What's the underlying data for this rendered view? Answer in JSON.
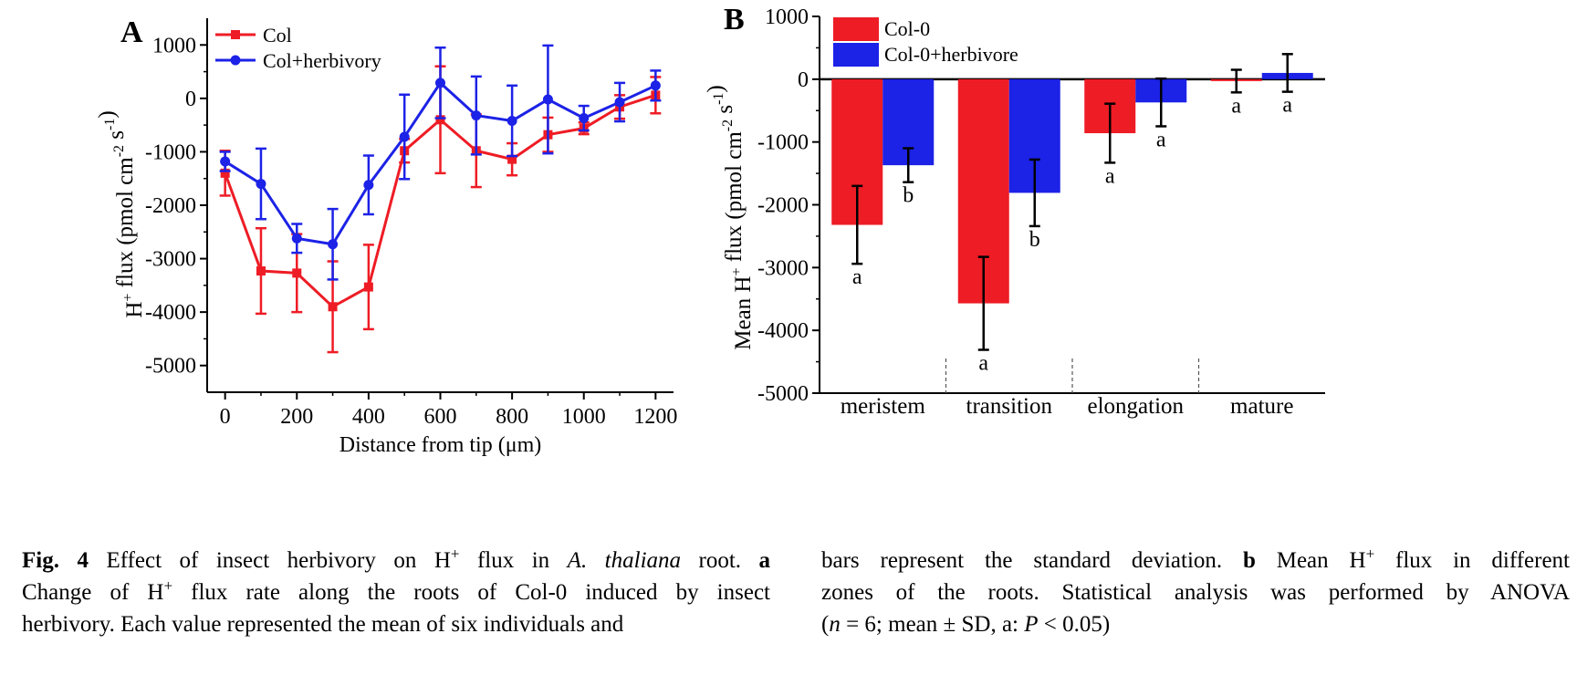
{
  "chart_data": [
    {
      "type": "line",
      "panel_label": "A",
      "xlabel": "Distance from tip (μm)",
      "ylabel": "H+ flux (pmol cm-2 s-1)",
      "xlim": [
        -50,
        1250
      ],
      "ylim": [
        -5500,
        1500
      ],
      "x_ticks": [
        0,
        200,
        400,
        600,
        800,
        1000,
        1200
      ],
      "y_ticks": [
        1000,
        0,
        -1000,
        -2000,
        -3000,
        -4000,
        -5000
      ],
      "legend_position": "top-left",
      "x": [
        0,
        100,
        200,
        300,
        400,
        500,
        600,
        700,
        800,
        900,
        1000,
        1100,
        1200
      ],
      "series": [
        {
          "name": "Col",
          "color": "#ee1c25",
          "marker": "square",
          "values": [
            -1400,
            -3230,
            -3270,
            -3900,
            -3530,
            -980,
            -400,
            -980,
            -1140,
            -680,
            -560,
            -160,
            60
          ],
          "errors": [
            420,
            800,
            730,
            850,
            790,
            220,
            1000,
            680,
            300,
            320,
            110,
            220,
            340
          ]
        },
        {
          "name": "Col+herbivory",
          "color": "#1c22e6",
          "marker": "circle",
          "values": [
            -1180,
            -1600,
            -2620,
            -2730,
            -1620,
            -720,
            290,
            -320,
            -420,
            -20,
            -370,
            -70,
            240
          ],
          "errors": [
            180,
            660,
            270,
            660,
            550,
            790,
            660,
            730,
            660,
            1010,
            230,
            360,
            280
          ]
        }
      ]
    },
    {
      "type": "bar",
      "panel_label": "B",
      "ylabel": "Mean H+ flux (pmol cm-2 s-1)",
      "categories": [
        "meristem",
        "transition",
        "elongation",
        "mature"
      ],
      "ylim": [
        -5000,
        1000
      ],
      "y_ticks": [
        1000,
        0,
        -1000,
        -2000,
        -3000,
        -4000,
        -5000
      ],
      "legend_position": "top-left",
      "series": [
        {
          "name": "Col-0",
          "color": "#ee1c25",
          "values": [
            -2320,
            -3570,
            -860,
            -30
          ],
          "errors": [
            620,
            740,
            470,
            180
          ],
          "letters": [
            "a",
            "a",
            "a",
            "a"
          ]
        },
        {
          "name": "Col-0+herbivore",
          "color": "#1c22e6",
          "values": [
            -1370,
            -1810,
            -370,
            100
          ],
          "errors": [
            270,
            530,
            380,
            300
          ],
          "letters": [
            "b",
            "b",
            "a",
            "a"
          ]
        }
      ]
    }
  ],
  "caption": {
    "fig_label": "Fig. 4",
    "left_l1": [
      {
        "t": " Effect of insect herbivory on H"
      },
      {
        "sup": "+"
      },
      {
        "t": " flux in "
      },
      {
        "i": "A. thaliana"
      },
      {
        "t": " root. "
      },
      {
        "b": "a"
      }
    ],
    "left_l2": [
      {
        "t": "Change of H"
      },
      {
        "sup": "+"
      },
      {
        "t": " flux rate along the roots of Col-0 induced by insect"
      }
    ],
    "left_l3": [
      {
        "t": "herbivory. Each value represented the mean of six individuals and"
      }
    ],
    "right_l1": [
      {
        "t": "bars represent the standard deviation. "
      },
      {
        "b": "b"
      },
      {
        "t": " Mean H"
      },
      {
        "sup": "+"
      },
      {
        "t": " flux in different"
      }
    ],
    "right_l2": [
      {
        "t": "zones of the roots. Statistical analysis was performed by ANOVA"
      }
    ],
    "right_l3": [
      {
        "t": "("
      },
      {
        "i": "n"
      },
      {
        "t": " = 6; mean ± SD, a: "
      },
      {
        "i": "P"
      },
      {
        "t": " < 0.05)"
      }
    ]
  }
}
